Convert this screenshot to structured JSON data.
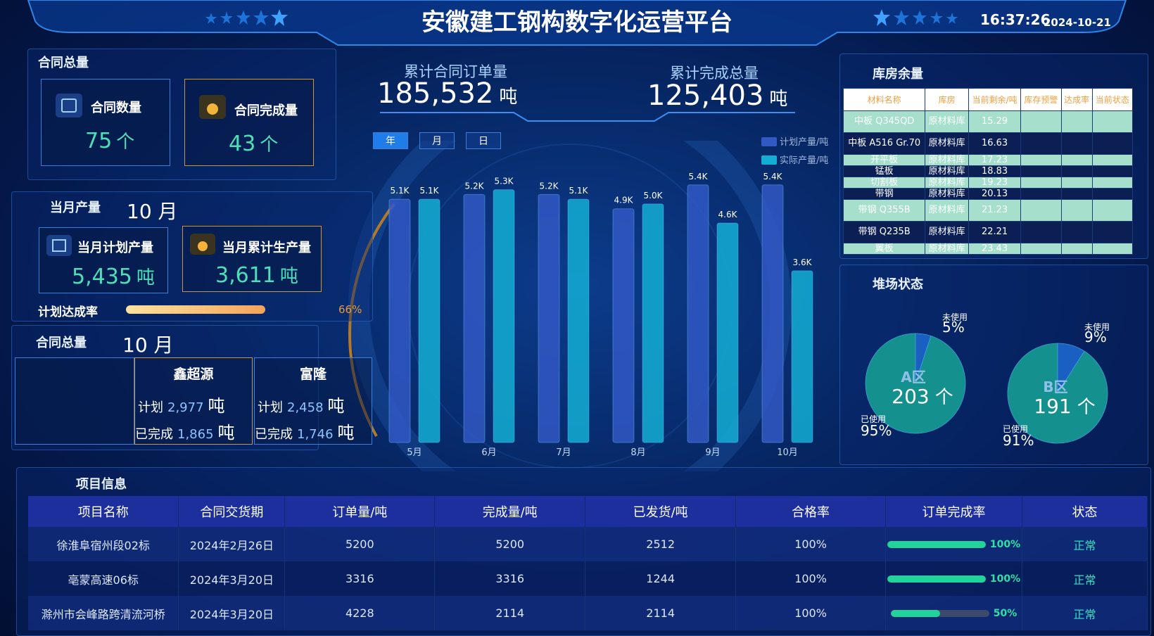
{
  "header": {
    "title": "安徽建工钢构数字化运营平台",
    "time": "16:37:26",
    "date": "2024-10-21"
  },
  "contracts": {
    "title": "合同总量",
    "count_label": "合同数量",
    "count": 75,
    "completed_label": "合同完成量",
    "completed": 43,
    "unit": "个"
  },
  "monthly": {
    "title": "当月产量",
    "month": "10 月",
    "plan_label": "当月计划产量",
    "plan": "5,435",
    "actual_label": "当月累计生产量",
    "actual": "3,611",
    "unit": "吨",
    "rate_label": "计划达成率",
    "rate": {
      "value": 66,
      "label": "66%"
    }
  },
  "suppliers": {
    "title": "合同总量",
    "month": "10 月",
    "plan_label": "计划",
    "done_label": "已完成",
    "unit": "吨",
    "items": [
      {
        "name": "鑫超源",
        "plan": "2,977",
        "done": "1,865"
      },
      {
        "name": "富隆",
        "plan": "2,458",
        "done": "1,746"
      }
    ]
  },
  "totals": {
    "order_label": "累计合同订单量",
    "order": "185,532",
    "done_label": "累计完成总量",
    "done": "125,403",
    "unit": "吨",
    "tabs": [
      "年",
      "月",
      "日"
    ]
  },
  "chart_data": {
    "type": "bar",
    "categories": [
      "5月",
      "6月",
      "7月",
      "8月",
      "9月",
      "10月"
    ],
    "series": [
      {
        "name": "计划产量/吨",
        "color": "#3158c4",
        "values": [
          5100,
          5200,
          5200,
          4900,
          5400,
          5400
        ],
        "value_labels": [
          "5.1K",
          "5.2K",
          "5.2K",
          "4.9K",
          "5.4K",
          "5.4K"
        ]
      },
      {
        "name": "实际产量/吨",
        "color": "#13aed4",
        "values": [
          5100,
          5300,
          5100,
          5000,
          4600,
          3600
        ],
        "value_labels": [
          "5.1K",
          "5.3K",
          "5.1K",
          "5.0K",
          "4.6K",
          "3.6K"
        ]
      }
    ],
    "ylim": [
      0,
      5500
    ]
  },
  "inventory": {
    "title": "库房余量",
    "columns": [
      "材料名称",
      "库房",
      "当前剩余/吨",
      "库存预警",
      "达成率",
      "当前状态"
    ],
    "rows": [
      [
        "中板 Q345QD",
        "原材料库",
        "15.29"
      ],
      [
        "中板 A516 Gr.70",
        "原材料库",
        "16.63"
      ],
      [
        "开平板",
        "原材料库",
        "17.23"
      ],
      [
        "锰板",
        "原材料库",
        "18.83"
      ],
      [
        "切割板",
        "原材料库",
        "19.23"
      ],
      [
        "带钢",
        "原材料库",
        "20.13"
      ],
      [
        "带钢 Q355B",
        "原材料库",
        "21.23"
      ],
      [
        "带钢 Q235B",
        "原材料库",
        "22.21"
      ],
      [
        "翼板",
        "原材料库",
        "23.43"
      ]
    ]
  },
  "yard": {
    "title": "堆场状态",
    "areas": [
      {
        "name": "A区",
        "count": 203,
        "unit": "个",
        "slices": [
          {
            "label": "未使用",
            "value": 5,
            "value_label": "5%",
            "color": "#1a5fc2"
          },
          {
            "label": "已使用",
            "value": 95,
            "value_label": "95%",
            "color": "#14908e"
          }
        ]
      },
      {
        "name": "B区",
        "count": 191,
        "unit": "个",
        "slices": [
          {
            "label": "未使用",
            "value": 9,
            "value_label": "9%",
            "color": "#1a5fc2"
          },
          {
            "label": "已使用",
            "value": 91,
            "value_label": "91%",
            "color": "#14908e"
          }
        ]
      }
    ]
  },
  "projects": {
    "title": "项目信息",
    "columns": [
      "项目名称",
      "合同交货期",
      "订单量/吨",
      "完成量/吨",
      "已发货/吨",
      "合格率",
      "订单完成率",
      "状态"
    ],
    "rows": [
      {
        "name": "徐淮阜宿州段02标",
        "delivery": "2024年2月26日",
        "order": 5200,
        "done": 5200,
        "shipped": 2512,
        "pass_rate": "100%",
        "completion": {
          "value": 100,
          "label": "100%"
        },
        "status": "正常"
      },
      {
        "name": "亳蒙高速06标",
        "delivery": "2024年3月20日",
        "order": 3316,
        "done": 3316,
        "shipped": 1244,
        "pass_rate": "100%",
        "completion": {
          "value": 100,
          "label": "100%"
        },
        "status": "正常"
      },
      {
        "name": "滁州市会峰路跨清流河桥",
        "delivery": "2024年3月20日",
        "order": 4228,
        "done": 2114,
        "shipped": 2114,
        "pass_rate": "100%",
        "completion": {
          "value": 50,
          "label": "50%"
        },
        "status": "正常"
      }
    ]
  }
}
